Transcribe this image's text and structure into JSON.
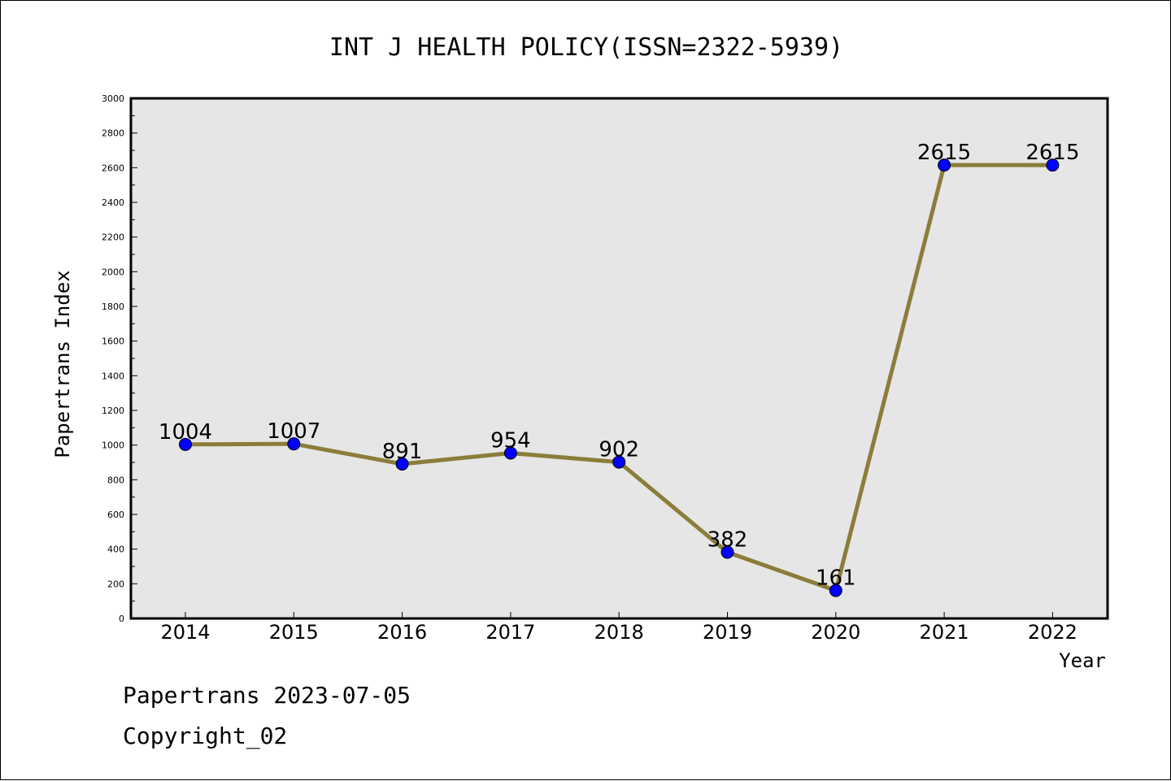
{
  "chart_data": {
    "type": "line",
    "title": "INT J HEALTH POLICY(ISSN=2322-5939)",
    "xlabel": "Year",
    "ylabel": "Papertrans Index",
    "categories": [
      "2014",
      "2015",
      "2016",
      "2017",
      "2018",
      "2019",
      "2020",
      "2021",
      "2022"
    ],
    "values": [
      1004,
      1007,
      891,
      954,
      902,
      382,
      161,
      2615,
      2615
    ],
    "data_labels": [
      "1004",
      "1007",
      "891",
      "954",
      "902",
      "382",
      "161",
      "2615",
      "2615"
    ],
    "ylim": [
      0,
      3000
    ],
    "yticks": [
      0,
      200,
      400,
      600,
      800,
      1000,
      1200,
      1400,
      1600,
      1800,
      2000,
      2200,
      2400,
      2600,
      2800,
      3000
    ],
    "grid": false,
    "legend": "none",
    "colors": {
      "line": "#8b7d3a",
      "marker": "#0000ff",
      "plot_bg": "#e6e6e6"
    }
  },
  "footer": {
    "line1": "Papertrans 2023-07-05",
    "line2": "Copyright_02"
  }
}
